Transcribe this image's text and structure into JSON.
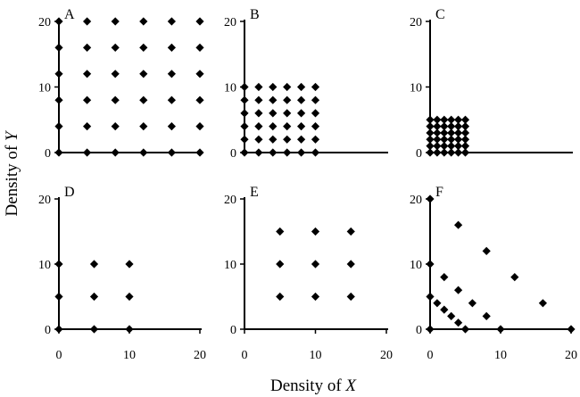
{
  "figure": {
    "xlabel_prefix": "Density of ",
    "xlabel_var": "X",
    "ylabel_prefix": "Density of ",
    "ylabel_var": "Y"
  },
  "chart_data": [
    {
      "type": "scatter",
      "panel": "A",
      "label": "A",
      "xlim": [
        0,
        20
      ],
      "ylim": [
        0,
        20
      ],
      "x_ticks": [],
      "y_ticks": [
        0,
        10,
        20
      ],
      "marker": "diamond",
      "grid": false,
      "points": [
        [
          0,
          0
        ],
        [
          0,
          4
        ],
        [
          0,
          8
        ],
        [
          0,
          12
        ],
        [
          0,
          16
        ],
        [
          0,
          20
        ],
        [
          4,
          0
        ],
        [
          4,
          4
        ],
        [
          4,
          8
        ],
        [
          4,
          12
        ],
        [
          4,
          16
        ],
        [
          4,
          20
        ],
        [
          8,
          0
        ],
        [
          8,
          4
        ],
        [
          8,
          8
        ],
        [
          8,
          12
        ],
        [
          8,
          16
        ],
        [
          8,
          20
        ],
        [
          12,
          0
        ],
        [
          12,
          4
        ],
        [
          12,
          8
        ],
        [
          12,
          12
        ],
        [
          12,
          16
        ],
        [
          12,
          20
        ],
        [
          16,
          0
        ],
        [
          16,
          4
        ],
        [
          16,
          8
        ],
        [
          16,
          12
        ],
        [
          16,
          16
        ],
        [
          16,
          20
        ],
        [
          20,
          0
        ],
        [
          20,
          4
        ],
        [
          20,
          8
        ],
        [
          20,
          12
        ],
        [
          20,
          16
        ],
        [
          20,
          20
        ]
      ]
    },
    {
      "type": "scatter",
      "panel": "B",
      "label": "B",
      "xlim": [
        0,
        20
      ],
      "ylim": [
        0,
        20
      ],
      "x_ticks": [],
      "y_ticks": [
        0,
        10,
        20
      ],
      "marker": "diamond",
      "grid": false,
      "points": [
        [
          0,
          0
        ],
        [
          0,
          2
        ],
        [
          0,
          4
        ],
        [
          0,
          6
        ],
        [
          0,
          8
        ],
        [
          0,
          10
        ],
        [
          2,
          0
        ],
        [
          2,
          2
        ],
        [
          2,
          4
        ],
        [
          2,
          6
        ],
        [
          2,
          8
        ],
        [
          2,
          10
        ],
        [
          4,
          0
        ],
        [
          4,
          2
        ],
        [
          4,
          4
        ],
        [
          4,
          6
        ],
        [
          4,
          8
        ],
        [
          4,
          10
        ],
        [
          6,
          0
        ],
        [
          6,
          2
        ],
        [
          6,
          4
        ],
        [
          6,
          6
        ],
        [
          6,
          8
        ],
        [
          6,
          10
        ],
        [
          8,
          0
        ],
        [
          8,
          2
        ],
        [
          8,
          4
        ],
        [
          8,
          6
        ],
        [
          8,
          8
        ],
        [
          8,
          10
        ],
        [
          10,
          0
        ],
        [
          10,
          2
        ],
        [
          10,
          4
        ],
        [
          10,
          6
        ],
        [
          10,
          8
        ],
        [
          10,
          10
        ]
      ]
    },
    {
      "type": "scatter",
      "panel": "C",
      "label": "C",
      "xlim": [
        0,
        20
      ],
      "ylim": [
        0,
        20
      ],
      "x_ticks": [],
      "y_ticks": [
        0,
        10,
        20
      ],
      "marker": "diamond",
      "grid": false,
      "points": [
        [
          0,
          0
        ],
        [
          0,
          1
        ],
        [
          0,
          2
        ],
        [
          0,
          3
        ],
        [
          0,
          4
        ],
        [
          0,
          5
        ],
        [
          1,
          0
        ],
        [
          1,
          1
        ],
        [
          1,
          2
        ],
        [
          1,
          3
        ],
        [
          1,
          4
        ],
        [
          1,
          5
        ],
        [
          2,
          0
        ],
        [
          2,
          1
        ],
        [
          2,
          2
        ],
        [
          2,
          3
        ],
        [
          2,
          4
        ],
        [
          2,
          5
        ],
        [
          3,
          0
        ],
        [
          3,
          1
        ],
        [
          3,
          2
        ],
        [
          3,
          3
        ],
        [
          3,
          4
        ],
        [
          3,
          5
        ],
        [
          4,
          0
        ],
        [
          4,
          1
        ],
        [
          4,
          2
        ],
        [
          4,
          3
        ],
        [
          4,
          4
        ],
        [
          4,
          5
        ],
        [
          5,
          0
        ],
        [
          5,
          1
        ],
        [
          5,
          2
        ],
        [
          5,
          3
        ],
        [
          5,
          4
        ],
        [
          5,
          5
        ]
      ]
    },
    {
      "type": "scatter",
      "panel": "D",
      "label": "D",
      "xlim": [
        0,
        20
      ],
      "ylim": [
        0,
        20
      ],
      "x_ticks": [
        0,
        10,
        20
      ],
      "y_ticks": [
        0,
        10,
        20
      ],
      "marker": "diamond",
      "grid": false,
      "points": [
        [
          0,
          0
        ],
        [
          0,
          5
        ],
        [
          0,
          10
        ],
        [
          5,
          0
        ],
        [
          5,
          5
        ],
        [
          5,
          10
        ],
        [
          10,
          0
        ],
        [
          10,
          5
        ],
        [
          10,
          10
        ]
      ]
    },
    {
      "type": "scatter",
      "panel": "E",
      "label": "E",
      "xlim": [
        0,
        20
      ],
      "ylim": [
        0,
        20
      ],
      "x_ticks": [
        0,
        10,
        20
      ],
      "y_ticks": [
        0,
        10,
        20
      ],
      "marker": "diamond",
      "grid": false,
      "points": [
        [
          5,
          5
        ],
        [
          5,
          10
        ],
        [
          5,
          15
        ],
        [
          10,
          5
        ],
        [
          10,
          10
        ],
        [
          10,
          15
        ],
        [
          15,
          5
        ],
        [
          15,
          10
        ],
        [
          15,
          15
        ]
      ]
    },
    {
      "type": "scatter",
      "panel": "F",
      "label": "F",
      "xlim": [
        0,
        20
      ],
      "ylim": [
        0,
        20
      ],
      "x_ticks": [
        0,
        10,
        20
      ],
      "y_ticks": [
        0,
        10,
        20
      ],
      "marker": "diamond",
      "grid": false,
      "points": [
        [
          0,
          0
        ],
        [
          0,
          5
        ],
        [
          0,
          10
        ],
        [
          0,
          20
        ],
        [
          1,
          4
        ],
        [
          2,
          3
        ],
        [
          3,
          2
        ],
        [
          4,
          1
        ],
        [
          5,
          0
        ],
        [
          2,
          8
        ],
        [
          4,
          6
        ],
        [
          6,
          4
        ],
        [
          8,
          2
        ],
        [
          10,
          0
        ],
        [
          4,
          16
        ],
        [
          8,
          12
        ],
        [
          12,
          8
        ],
        [
          16,
          4
        ],
        [
          20,
          0
        ]
      ]
    }
  ]
}
